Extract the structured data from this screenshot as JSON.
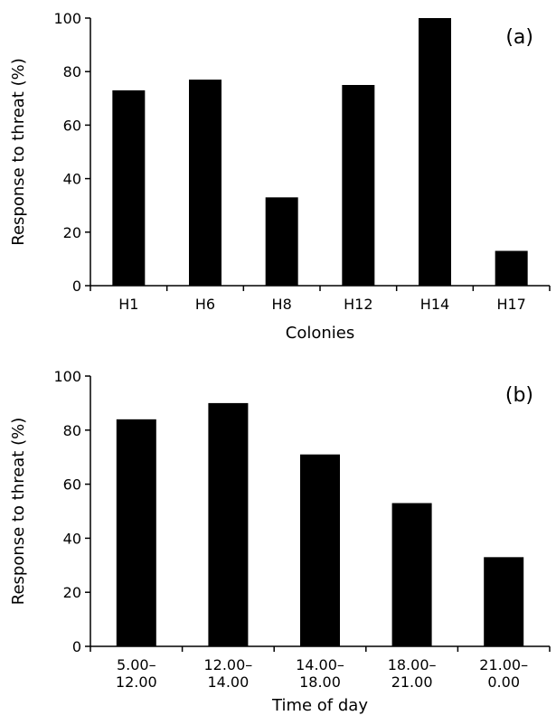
{
  "chart_data": [
    {
      "type": "bar",
      "panel_label": "(a)",
      "xlabel": "Colonies",
      "ylabel": "Response to threat (%)",
      "ylim": [
        0,
        100
      ],
      "yticks": [
        0,
        20,
        40,
        60,
        80,
        100
      ],
      "categories": [
        [
          "H1"
        ],
        [
          "H6"
        ],
        [
          "H8"
        ],
        [
          "H12"
        ],
        [
          "H14"
        ],
        [
          "H17"
        ]
      ],
      "values": [
        73,
        77,
        33,
        75,
        100,
        13
      ],
      "bar_color": "#000000",
      "grid": false,
      "legend": "none"
    },
    {
      "type": "bar",
      "panel_label": "(b)",
      "xlabel": "Time of day",
      "ylabel": "Response to threat (%)",
      "ylim": [
        0,
        100
      ],
      "yticks": [
        0,
        20,
        40,
        60,
        80,
        100
      ],
      "categories": [
        [
          "5.00–",
          "12.00"
        ],
        [
          "12.00–",
          "14.00"
        ],
        [
          "14.00–",
          "18.00"
        ],
        [
          "18.00–",
          "21.00"
        ],
        [
          "21.00–",
          "0.00"
        ]
      ],
      "values": [
        84,
        90,
        71,
        53,
        33
      ],
      "bar_color": "#000000",
      "grid": false,
      "legend": "none"
    }
  ]
}
